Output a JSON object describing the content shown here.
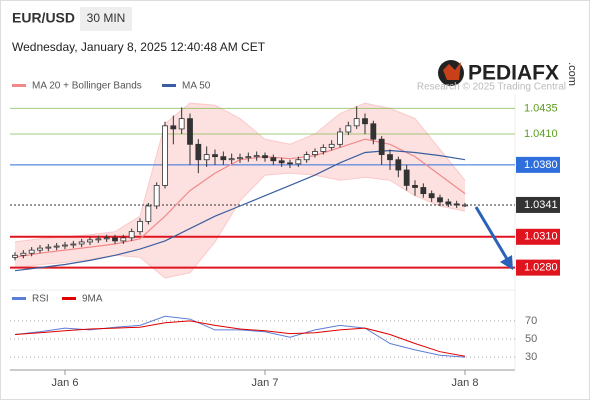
{
  "header": {
    "symbol": "EUR/USD",
    "timeframe": "30 MIN",
    "timestamp": "Wednesday, January 8, 2025 12:40:48 AM CET"
  },
  "brand": {
    "name": "PEDIAFX",
    "suffix": ".com",
    "credit": "Research © 2025 Trading Central"
  },
  "chart_data": [
    {
      "type": "candlestick",
      "x": [
        -6,
        -5,
        -4,
        -3,
        -2,
        -1,
        0,
        1,
        2,
        3,
        4,
        5,
        6,
        7,
        8,
        9,
        10,
        11,
        12,
        13,
        14,
        15,
        16,
        17,
        18,
        19,
        20,
        21,
        22,
        23,
        24,
        25,
        26,
        27,
        28,
        29,
        30,
        31,
        32,
        33,
        34,
        35,
        36,
        37,
        38,
        39,
        40,
        41,
        42,
        43,
        44,
        45,
        46,
        47,
        48
      ],
      "open": [
        1.029,
        1.0292,
        1.0294,
        1.0297,
        1.0299,
        1.03,
        1.0301,
        1.0302,
        1.0303,
        1.0305,
        1.0307,
        1.0308,
        1.0309,
        1.0306,
        1.0309,
        1.0315,
        1.0325,
        1.034,
        1.036,
        1.0418,
        1.0415,
        1.0425,
        1.04,
        1.0385,
        1.039,
        1.0388,
        1.0385,
        1.0386,
        1.0387,
        1.0388,
        1.0389,
        1.0387,
        1.0384,
        1.0382,
        1.0381,
        1.0385,
        1.039,
        1.0393,
        1.0397,
        1.04,
        1.0412,
        1.0418,
        1.0425,
        1.042,
        1.0405,
        1.039,
        1.0385,
        1.0375,
        1.036,
        1.0358,
        1.0352,
        1.0348,
        1.0344,
        1.0342,
        1.0341
      ],
      "high": [
        1.0295,
        1.0297,
        1.03,
        1.0302,
        1.0303,
        1.0304,
        1.0305,
        1.0306,
        1.0308,
        1.031,
        1.0311,
        1.0312,
        1.0312,
        1.0312,
        1.0318,
        1.0328,
        1.0343,
        1.0363,
        1.0422,
        1.0428,
        1.0436,
        1.043,
        1.0405,
        1.0398,
        1.0395,
        1.0393,
        1.0391,
        1.0391,
        1.0392,
        1.0393,
        1.0392,
        1.039,
        1.0387,
        1.0385,
        1.0388,
        1.0393,
        1.0396,
        1.04,
        1.0404,
        1.0416,
        1.0422,
        1.0437,
        1.043,
        1.0423,
        1.0408,
        1.0395,
        1.0388,
        1.038,
        1.0365,
        1.0362,
        1.0355,
        1.0351,
        1.0347,
        1.0345,
        1.0343
      ],
      "low": [
        1.0287,
        1.0289,
        1.0291,
        1.0294,
        1.0296,
        1.0297,
        1.0298,
        1.0299,
        1.03,
        1.0302,
        1.0304,
        1.0305,
        1.0303,
        1.0303,
        1.0306,
        1.0312,
        1.0322,
        1.0337,
        1.0357,
        1.04,
        1.041,
        1.038,
        1.0372,
        1.0378,
        1.038,
        1.038,
        1.0381,
        1.0382,
        1.0383,
        1.0384,
        1.0383,
        1.038,
        1.0378,
        1.0377,
        1.0378,
        1.0382,
        1.0387,
        1.039,
        1.0394,
        1.0397,
        1.0409,
        1.0415,
        1.041,
        1.04,
        1.038,
        1.0375,
        1.0368,
        1.0355,
        1.035,
        1.0348,
        1.0344,
        1.034,
        1.0339,
        1.0338,
        1.0339
      ],
      "close": [
        1.0292,
        1.0294,
        1.0297,
        1.0299,
        1.03,
        1.0301,
        1.0302,
        1.0303,
        1.0305,
        1.0307,
        1.0308,
        1.0309,
        1.0306,
        1.0309,
        1.0315,
        1.0325,
        1.034,
        1.036,
        1.0418,
        1.0415,
        1.0425,
        1.04,
        1.0385,
        1.039,
        1.0388,
        1.0385,
        1.0386,
        1.0387,
        1.0388,
        1.0389,
        1.0387,
        1.0384,
        1.0382,
        1.0381,
        1.0385,
        1.039,
        1.0393,
        1.0397,
        1.04,
        1.0412,
        1.0418,
        1.0425,
        1.042,
        1.0405,
        1.039,
        1.0385,
        1.0375,
        1.036,
        1.0358,
        1.0352,
        1.0348,
        1.0344,
        1.0342,
        1.0341,
        1.0341
      ],
      "up_color": "#ffffff",
      "down_color": "#333333",
      "xlim": [
        -6.6,
        54
      ],
      "ylim": [
        1.0266,
        1.0448
      ],
      "overlays": [
        {
          "name": "MA 20 + Bollinger Bands",
          "color": "#f08a8a",
          "band_color": "#fbc9c9",
          "x": [
            -6,
            -3,
            0,
            3,
            6,
            9,
            12,
            15,
            18,
            21,
            24,
            27,
            30,
            33,
            36,
            39,
            42,
            45,
            48
          ],
          "values": [
            1.029,
            1.0294,
            1.0297,
            1.03,
            1.0303,
            1.0308,
            1.033,
            1.0355,
            1.0372,
            1.0385,
            1.0388,
            1.0386,
            1.0389,
            1.0397,
            1.0405,
            1.04,
            1.0388,
            1.037,
            1.0352
          ],
          "upper": [
            1.0305,
            1.0308,
            1.031,
            1.0312,
            1.0315,
            1.033,
            1.042,
            1.044,
            1.0438,
            1.0425,
            1.0405,
            1.04,
            1.041,
            1.043,
            1.044,
            1.0435,
            1.0425,
            1.0395,
            1.0365
          ],
          "lower": [
            1.028,
            1.0283,
            1.0285,
            1.0288,
            1.0292,
            1.029,
            1.027,
            1.0275,
            1.0305,
            1.0345,
            1.037,
            1.0372,
            1.037,
            1.0365,
            1.0368,
            1.0365,
            1.035,
            1.034,
            1.0335
          ]
        },
        {
          "name": "MA 50",
          "color": "#3a5fa0",
          "x": [
            -6,
            -3,
            0,
            3,
            6,
            9,
            12,
            15,
            18,
            21,
            24,
            27,
            30,
            33,
            36,
            39,
            42,
            45,
            48
          ],
          "values": [
            1.0277,
            1.028,
            1.0283,
            1.0287,
            1.0292,
            1.0298,
            1.0306,
            1.0318,
            1.033,
            1.034,
            1.035,
            1.036,
            1.037,
            1.0382,
            1.0392,
            1.0394,
            1.0392,
            1.0389,
            1.0385
          ]
        }
      ],
      "levels": [
        {
          "value": 1.0435,
          "color": "#7ab648",
          "boxed": false,
          "dashed": false
        },
        {
          "value": 1.041,
          "label": "1.0410",
          "color": "#7ab648",
          "boxed": false,
          "dashed": false
        },
        {
          "value": 1.038,
          "label": "1.0380",
          "color": "#2f6fdc",
          "boxed": true,
          "dashed": false
        },
        {
          "value": 1.0341,
          "color": "#333333",
          "boxed": true,
          "dashed": true
        },
        {
          "value": 1.031,
          "label": "1.0310",
          "color": "#e0141e",
          "boxed": true,
          "dashed": false
        },
        {
          "value": 1.028,
          "label": "1.0280",
          "color": "#e0141e",
          "boxed": true,
          "dashed": false
        }
      ]
    },
    {
      "type": "line",
      "x": [
        -6,
        -3,
        0,
        3,
        6,
        9,
        12,
        15,
        18,
        21,
        24,
        27,
        30,
        33,
        36,
        39,
        42,
        45,
        48
      ],
      "series": [
        {
          "name": "RSI",
          "color": "#5b7fd6",
          "values": [
            55,
            58,
            62,
            60,
            63,
            65,
            75,
            72,
            60,
            60,
            58,
            52,
            60,
            65,
            62,
            45,
            38,
            32,
            30
          ]
        },
        {
          "name": "9MA",
          "color": "#e00000",
          "values": [
            55,
            57,
            59,
            61,
            62,
            63,
            68,
            70,
            65,
            61,
            59,
            56,
            57,
            60,
            62,
            55,
            45,
            36,
            31
          ]
        }
      ],
      "xlim": [
        -6.6,
        54
      ],
      "ylim": [
        18,
        82
      ],
      "yticks": [
        30,
        50,
        70
      ],
      "grid": true,
      "xticks": [
        {
          "value": 0,
          "label": "Jan 6"
        },
        {
          "value": 24,
          "label": "Jan 7"
        },
        {
          "value": 48,
          "label": "Jan 8"
        }
      ]
    }
  ]
}
